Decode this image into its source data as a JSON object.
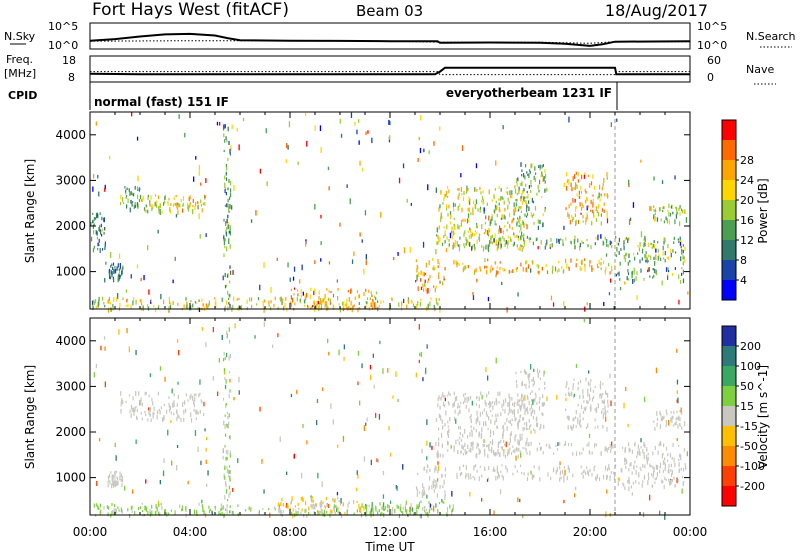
{
  "header": {
    "station": "Fort Hays West (fitACF)",
    "beam": "Beam 03",
    "date": "18/Aug/2017"
  },
  "noise_panel": {
    "left_label": "N.Sky",
    "left_ticks": [
      "10^5",
      "10^0"
    ],
    "right_label": "N.Search",
    "right_ticks": [
      "10^5",
      "10^0"
    ],
    "sky_trace": [
      [
        0,
        1.6
      ],
      [
        1,
        1.9
      ],
      [
        2,
        2.4
      ],
      [
        3,
        2.8
      ],
      [
        4,
        2.9
      ],
      [
        5,
        2.6
      ],
      [
        5.5,
        2.1
      ],
      [
        6,
        1.7
      ],
      [
        8,
        1.6
      ],
      [
        10,
        1.55
      ],
      [
        12,
        1.5
      ],
      [
        13.9,
        1.5
      ],
      [
        14,
        1.2
      ],
      [
        16,
        1.25
      ],
      [
        18,
        1.2
      ],
      [
        19,
        1.0
      ],
      [
        20,
        0.6
      ],
      [
        20.5,
        0.9
      ],
      [
        21,
        1.4
      ],
      [
        24,
        1.5
      ]
    ],
    "search_trace": [
      [
        0,
        1.5
      ],
      [
        4,
        1.6
      ],
      [
        6,
        1.6
      ],
      [
        8,
        1.6
      ],
      [
        12,
        1.5
      ],
      [
        14,
        1.3
      ],
      [
        18,
        1.3
      ],
      [
        20,
        1.1
      ],
      [
        21,
        1.4
      ],
      [
        24,
        1.4
      ]
    ]
  },
  "freq_panel": {
    "left_label": "Freq.",
    "left_unit": "[MHz]",
    "left_ticks": [
      "18",
      "8"
    ],
    "right_label": "Nave",
    "right_ticks": [
      "60",
      "0"
    ],
    "freq_trace": [
      [
        0,
        11.2
      ],
      [
        2,
        11.0
      ],
      [
        6,
        11.0
      ],
      [
        12,
        11.0
      ],
      [
        13.8,
        11.0
      ],
      [
        14,
        12.0
      ],
      [
        14.2,
        13.5
      ],
      [
        21,
        13.5
      ],
      [
        21.05,
        11.0
      ],
      [
        24,
        11.0
      ]
    ],
    "nave_trace": [
      [
        0,
        24
      ],
      [
        13.9,
        24
      ],
      [
        14,
        17
      ],
      [
        21,
        17
      ],
      [
        21.05,
        24
      ],
      [
        24,
        24
      ]
    ]
  },
  "cpid": {
    "label": "CPID",
    "modes": [
      {
        "name": "normal (fast) 151 IF",
        "start": 0,
        "end": 21
      },
      {
        "name": "everyotherbeam 1231 IF",
        "start": 21,
        "end": 24
      }
    ]
  },
  "chart_data": [
    {
      "type": "heatmap",
      "title": "",
      "ylabel": "Slant Range [km]",
      "xlabel": "",
      "ylim": [
        180,
        4500
      ],
      "xlim": [
        0,
        24
      ],
      "yticks": [
        1000,
        2000,
        3000,
        4000
      ],
      "colorbar": {
        "label": "Power [dB]",
        "ticks": [
          "4",
          "8",
          "12",
          "16",
          "20",
          "24",
          "28"
        ],
        "tick_values": [
          4,
          8,
          12,
          16,
          20,
          24,
          28
        ],
        "range": [
          0,
          30
        ],
        "colors": [
          "#0000ff",
          "#1a44a8",
          "#2f7a6a",
          "#4aa050",
          "#9acd32",
          "#ffd700",
          "#ffa500",
          "#ff6a00",
          "#ff0000"
        ]
      },
      "features": [
        {
          "t0": 0.0,
          "t1": 0.6,
          "r0": 1500,
          "r1": 2400,
          "level": 9
        },
        {
          "t0": 0.7,
          "t1": 1.3,
          "r0": 850,
          "r1": 1200,
          "level": 10
        },
        {
          "t0": 1.2,
          "t1": 2.0,
          "r0": 2400,
          "r1": 2900,
          "level": 12
        },
        {
          "t0": 2.0,
          "t1": 3.2,
          "r0": 2300,
          "r1": 2700,
          "level": 16
        },
        {
          "t0": 3.2,
          "t1": 4.6,
          "r0": 2300,
          "r1": 2700,
          "level": 19
        },
        {
          "t0": 5.3,
          "t1": 5.6,
          "r0": 200,
          "r1": 4300,
          "level": 10
        },
        {
          "t0": 0.0,
          "t1": 14.0,
          "r0": 200,
          "r1": 450,
          "level": 17
        },
        {
          "t0": 8.0,
          "t1": 11.5,
          "r0": 200,
          "r1": 650,
          "level": 22
        },
        {
          "t0": 13.0,
          "t1": 14.2,
          "r0": 600,
          "r1": 1300,
          "level": 22
        },
        {
          "t0": 13.8,
          "t1": 17.5,
          "r0": 1500,
          "r1": 2900,
          "level": 17
        },
        {
          "t0": 14.5,
          "t1": 21.0,
          "r0": 1000,
          "r1": 1300,
          "level": 20
        },
        {
          "t0": 15.0,
          "t1": 20.9,
          "r0": 1550,
          "r1": 1800,
          "level": 12
        },
        {
          "t0": 17.0,
          "t1": 18.2,
          "r0": 2000,
          "r1": 3400,
          "level": 12
        },
        {
          "t0": 19.0,
          "t1": 20.7,
          "r0": 2100,
          "r1": 3200,
          "level": 21
        },
        {
          "t0": 21.0,
          "t1": 23.8,
          "r0": 1200,
          "r1": 1800,
          "level": 13
        },
        {
          "t0": 21.0,
          "t1": 23.8,
          "r0": 800,
          "r1": 1100,
          "level": 11
        },
        {
          "t0": 22.5,
          "t1": 23.8,
          "r0": 2100,
          "r1": 2500,
          "level": 14
        }
      ]
    },
    {
      "type": "heatmap",
      "title": "",
      "ylabel": "Slant Range [km]",
      "xlabel": "Time UT",
      "ylim": [
        180,
        4500
      ],
      "xlim": [
        0,
        24
      ],
      "yticks": [
        1000,
        2000,
        3000,
        4000
      ],
      "xticks": [
        "00:00",
        "04:00",
        "08:00",
        "12:00",
        "16:00",
        "20:00",
        "00:00"
      ],
      "xtick_values": [
        0,
        4,
        8,
        12,
        16,
        20,
        24
      ],
      "colorbar": {
        "label": "Velocity [m s^-1]",
        "ticks": [
          "200",
          "100",
          "50",
          "15",
          "-15",
          "-50",
          "-100",
          "-200"
        ],
        "tick_values": [
          200,
          100,
          50,
          15,
          -15,
          -50,
          -100,
          -200
        ],
        "range": [
          -250,
          250
        ],
        "colors": [
          "#2030a0",
          "#2e7a7a",
          "#3aa860",
          "#7fd040",
          "#c8c8c0",
          "#ffc000",
          "#ff8c00",
          "#ff4000",
          "#ff0000"
        ]
      },
      "features": [
        {
          "t0": 0.7,
          "t1": 1.3,
          "r0": 850,
          "r1": 1200,
          "level": 0
        },
        {
          "t0": 1.2,
          "t1": 4.6,
          "r0": 2300,
          "r1": 2900,
          "level": 0
        },
        {
          "t0": 5.3,
          "t1": 5.6,
          "r0": 200,
          "r1": 4300,
          "level": 30
        },
        {
          "t0": 0.0,
          "t1": 14.0,
          "r0": 200,
          "r1": 450,
          "level": 45
        },
        {
          "t0": 7.5,
          "t1": 11.0,
          "r0": 200,
          "r1": 600,
          "level": -40
        },
        {
          "t0": 11.0,
          "t1": 14.5,
          "r0": 200,
          "r1": 500,
          "level": 60
        },
        {
          "t0": 13.0,
          "t1": 14.2,
          "r0": 600,
          "r1": 1300,
          "level": 0
        },
        {
          "t0": 13.8,
          "t1": 17.5,
          "r0": 1500,
          "r1": 2900,
          "level": 0
        },
        {
          "t0": 14.5,
          "t1": 21.0,
          "r0": 1000,
          "r1": 1300,
          "level": 0
        },
        {
          "t0": 15.0,
          "t1": 20.9,
          "r0": 1550,
          "r1": 1800,
          "level": 0
        },
        {
          "t0": 17.0,
          "t1": 18.2,
          "r0": 2000,
          "r1": 3400,
          "level": 0
        },
        {
          "t0": 19.0,
          "t1": 20.7,
          "r0": 2100,
          "r1": 3200,
          "level": 0
        },
        {
          "t0": 21.0,
          "t1": 23.8,
          "r0": 800,
          "r1": 1800,
          "level": 0
        },
        {
          "t0": 22.5,
          "t1": 23.8,
          "r0": 2100,
          "r1": 2500,
          "level": 0
        }
      ]
    }
  ]
}
